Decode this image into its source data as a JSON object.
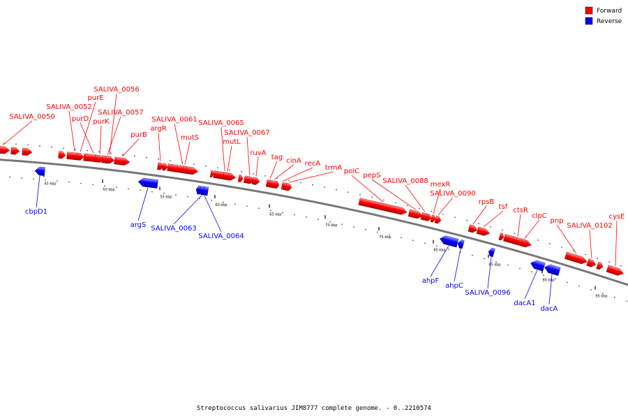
{
  "caption": "Streptococcus salivarius JIM8777 complete genome. - 0..2210574",
  "colors": {
    "forward": "#ff0000",
    "reverse": "#0000ff",
    "backbone": "#777777"
  },
  "legend": [
    {
      "key": "forward",
      "label": "Forward"
    },
    {
      "key": "reverse",
      "label": "Reverse"
    }
  ],
  "scale": {
    "ticks": [
      "45 kbp",
      "50 kbp",
      "55 kbp",
      "60 kbp",
      "65 kbp",
      "70 kbp",
      "75 kbp",
      "80 kbp",
      "85 kbp",
      "90 kbp",
      "95 kbp"
    ]
  },
  "forward_genes": [
    "SALIVA_0050",
    "SALIVA_0052",
    "purD",
    "purE",
    "SALIVA_0056",
    "purK",
    "SALIVA_0057",
    "purB",
    "argR",
    "SALIVA_0061",
    "mutS",
    "SALIVA_0065",
    "mutL",
    "SALIVA_0067",
    "ruvA",
    "tag",
    "cinA",
    "recA",
    "trmA",
    "polC",
    "pepS",
    "SALIVA_0088",
    "mexR",
    "SALIVA_0090",
    "rpsB",
    "tsf",
    "ctsR",
    "clpC",
    "pnp",
    "SALIVA_0102",
    "cysE"
  ],
  "reverse_genes": [
    "cbpD1",
    "argS",
    "SALIVA_0063",
    "SALIVA_0064",
    "ahpF",
    "ahpC",
    "SALIVA_0096",
    "dacA1",
    "dacA"
  ]
}
